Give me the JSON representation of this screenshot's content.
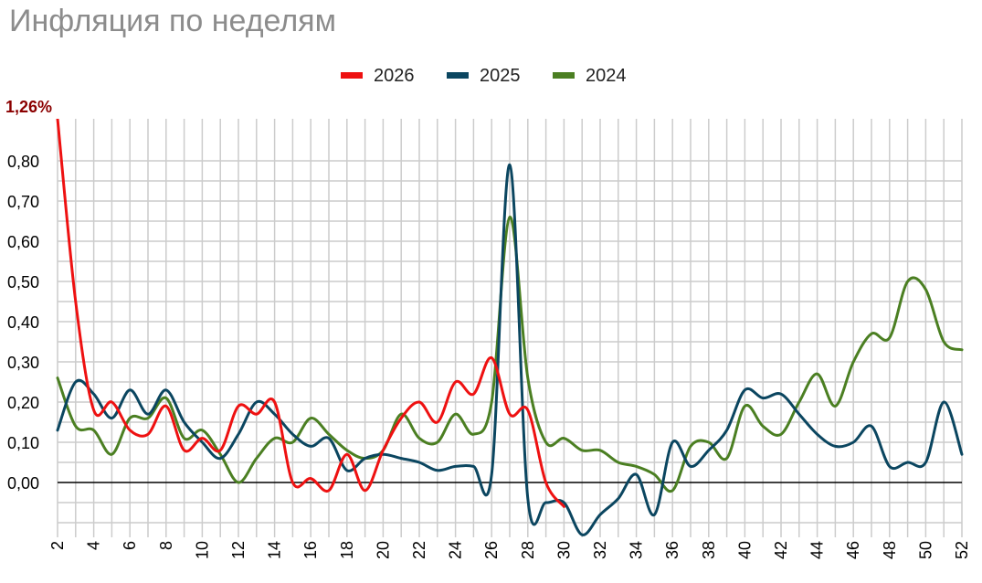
{
  "chart_data": {
    "type": "line",
    "title": "Инфляция по неделям",
    "xlabel": "",
    "ylabel": "",
    "x_tick_labels": [
      "2",
      "4",
      "6",
      "8",
      "10",
      "12",
      "14",
      "16",
      "18",
      "20",
      "22",
      "24",
      "26",
      "28",
      "30",
      "32",
      "34",
      "36",
      "38",
      "40",
      "42",
      "44",
      "46",
      "48",
      "50",
      "52"
    ],
    "y_tick_labels": [
      "0,00",
      "0,10",
      "0,20",
      "0,30",
      "0,40",
      "0,50",
      "0,60",
      "0,70",
      "0,80"
    ],
    "overflow_label": "1,26%",
    "xlim": [
      2,
      52
    ],
    "ylim": [
      -0.13,
      0.9
    ],
    "grid": true,
    "legend_position": "top-center",
    "series": [
      {
        "name": "2026",
        "color": "#ee1111",
        "x": [
          2,
          3,
          4,
          5,
          6,
          7,
          8,
          9,
          10,
          11,
          12,
          13,
          14,
          15,
          16,
          17,
          18,
          19,
          20,
          21,
          22,
          23,
          24,
          25,
          26,
          27,
          28,
          29,
          30
        ],
        "y": [
          1.26,
          0.45,
          0.18,
          0.2,
          0.13,
          0.12,
          0.19,
          0.08,
          0.11,
          0.08,
          0.19,
          0.17,
          0.2,
          0.0,
          0.01,
          -0.02,
          0.07,
          -0.02,
          0.08,
          0.16,
          0.2,
          0.15,
          0.25,
          0.22,
          0.31,
          0.17,
          0.18,
          0.0,
          -0.06
        ]
      },
      {
        "name": "2025",
        "color": "#0b4660",
        "x": [
          2,
          3,
          4,
          5,
          6,
          7,
          8,
          9,
          10,
          11,
          12,
          13,
          14,
          15,
          16,
          17,
          18,
          19,
          20,
          21,
          22,
          23,
          24,
          25,
          26,
          27,
          28,
          29,
          30,
          31,
          32,
          33,
          34,
          35,
          36,
          37,
          38,
          39,
          40,
          41,
          42,
          43,
          44,
          45,
          46,
          47,
          48,
          49,
          50,
          51,
          52
        ],
        "y": [
          0.13,
          0.25,
          0.22,
          0.16,
          0.23,
          0.17,
          0.23,
          0.15,
          0.1,
          0.06,
          0.12,
          0.2,
          0.17,
          0.12,
          0.09,
          0.11,
          0.03,
          0.06,
          0.07,
          0.06,
          0.05,
          0.03,
          0.04,
          0.04,
          0.02,
          0.79,
          -0.04,
          -0.05,
          -0.05,
          -0.13,
          -0.08,
          -0.04,
          0.02,
          -0.08,
          0.1,
          0.04,
          0.08,
          0.13,
          0.23,
          0.21,
          0.22,
          0.17,
          0.12,
          0.09,
          0.1,
          0.14,
          0.04,
          0.05,
          0.05,
          0.2,
          0.07
        ]
      },
      {
        "name": "2024",
        "color": "#4b7f22",
        "x": [
          2,
          3,
          4,
          5,
          6,
          7,
          8,
          9,
          10,
          11,
          12,
          13,
          14,
          15,
          16,
          17,
          18,
          19,
          20,
          21,
          22,
          23,
          24,
          25,
          26,
          27,
          28,
          29,
          30,
          31,
          32,
          33,
          34,
          35,
          36,
          37,
          38,
          39,
          40,
          41,
          42,
          43,
          44,
          45,
          46,
          47,
          48,
          49,
          50,
          51,
          52
        ],
        "y": [
          0.26,
          0.14,
          0.13,
          0.07,
          0.16,
          0.16,
          0.21,
          0.11,
          0.13,
          0.07,
          0.0,
          0.06,
          0.11,
          0.1,
          0.16,
          0.12,
          0.08,
          0.06,
          0.08,
          0.17,
          0.11,
          0.1,
          0.17,
          0.12,
          0.2,
          0.66,
          0.26,
          0.1,
          0.11,
          0.08,
          0.08,
          0.05,
          0.04,
          0.02,
          -0.02,
          0.09,
          0.1,
          0.06,
          0.19,
          0.14,
          0.12,
          0.2,
          0.27,
          0.19,
          0.3,
          0.37,
          0.36,
          0.5,
          0.48,
          0.35,
          0.33
        ]
      }
    ]
  }
}
